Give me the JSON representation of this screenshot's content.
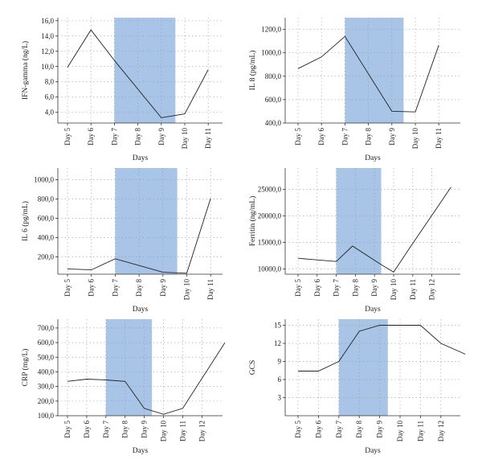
{
  "chart_data": [
    {
      "type": "line",
      "ylabel": "IFN-gamma (ng/L)",
      "xlabel": "Days",
      "categories": [
        "Day 5",
        "Day 6",
        "Day 7",
        "Day 8",
        "Day 9",
        "Day 10",
        "Day 11"
      ],
      "xlim": [
        0,
        7
      ],
      "ylim": [
        2.6,
        16.4
      ],
      "yticks": [
        4.0,
        6.0,
        8.0,
        10.0,
        12.0,
        14.0,
        16.0
      ],
      "ytick_labels": [
        "4,0",
        "6,0",
        "8,0",
        "10,0",
        "12,0",
        "14,0",
        "16,0"
      ],
      "shaded_x": [
        2,
        4.6
      ],
      "shade_color": "#a8c4e6",
      "series": [
        {
          "x": [
            0,
            1,
            2,
            4,
            5,
            6
          ],
          "y": [
            9.9,
            14.8,
            10.8,
            3.3,
            3.8,
            9.6
          ]
        }
      ]
    },
    {
      "type": "line",
      "ylabel": "IL 8 (pg/mL)",
      "xlabel": "Days",
      "categories": [
        "Day 5",
        "Day 6",
        "Day 7",
        "Day 8",
        "Day 9",
        "Day 10",
        "Day 11"
      ],
      "xlim": [
        0,
        7
      ],
      "ylim": [
        400,
        1300
      ],
      "yticks": [
        400.0,
        600.0,
        800.0,
        1000.0,
        1200.0
      ],
      "ytick_labels": [
        "400,0",
        "600,0",
        "800,0",
        "1000,0",
        "1200,0"
      ],
      "shaded_x": [
        2,
        4.5
      ],
      "shade_color": "#a8c4e6",
      "series": [
        {
          "x": [
            0,
            1,
            2,
            4,
            5,
            6
          ],
          "y": [
            865,
            965,
            1140,
            500,
            495,
            1065
          ]
        }
      ]
    },
    {
      "type": "line",
      "ylabel": "IL 6 (pg/mL)",
      "xlabel": "Days",
      "categories": [
        "Day 5",
        "Day 6",
        "Day 7",
        "Day 8",
        "Day 9",
        "Day 10",
        "Day 11"
      ],
      "xlim": [
        0,
        7
      ],
      "ylim": [
        20,
        1120
      ],
      "yticks": [
        200.0,
        400.0,
        600.0,
        800.0,
        1000.0
      ],
      "ytick_labels": [
        "200,0",
        "400,0",
        "600,0",
        "800,0",
        "1000,0"
      ],
      "shaded_x": [
        2,
        4.6
      ],
      "shade_color": "#a8c4e6",
      "series": [
        {
          "x": [
            0,
            1,
            2,
            4,
            5,
            6
          ],
          "y": [
            75,
            65,
            180,
            40,
            30,
            805
          ]
        }
      ]
    },
    {
      "type": "line",
      "ylabel": "Ferritin (ng/mL)",
      "xlabel": "Days",
      "categories": [
        "Day 5",
        "Day 6",
        "Day 7",
        "Day 8",
        "Day 9",
        "Day 10",
        "Day 11",
        "Day 12"
      ],
      "xlim": [
        0,
        8
      ],
      "ylim": [
        9000,
        29000
      ],
      "yticks": [
        10000.0,
        15000.0,
        20000.0,
        25000.0
      ],
      "ytick_labels": [
        "10000,0",
        "15000,0",
        "20000,0",
        "25000,0"
      ],
      "shaded_x": [
        2,
        4.35
      ],
      "shade_color": "#a8c4e6",
      "series": [
        {
          "x": [
            0,
            2,
            2.85,
            4.35,
            5,
            5.85,
            8
          ],
          "y": [
            12000,
            11400,
            14300,
            10800,
            9400,
            14000,
            25400
          ]
        }
      ]
    },
    {
      "type": "line",
      "ylabel": "CRP (mg/L)",
      "xlabel": "Days",
      "categories": [
        "Day 5",
        "Day 6",
        "Day 7",
        "Day 8",
        "Day 9",
        "Day 10",
        "Day 11",
        "Day 12"
      ],
      "xlim": [
        0,
        8.2
      ],
      "ylim": [
        100,
        760
      ],
      "yticks": [
        100.0,
        200.0,
        300.0,
        400.0,
        500.0,
        600.0,
        700.0
      ],
      "ytick_labels": [
        "100,0",
        "200,0",
        "300,0",
        "400,0",
        "500,0",
        "600,0",
        "700,0"
      ],
      "shaded_x": [
        2,
        4.4
      ],
      "shade_color": "#a8c4e6",
      "series": [
        {
          "x": [
            0,
            1,
            2,
            3,
            4,
            5,
            6,
            8.2
          ],
          "y": [
            335,
            350,
            345,
            335,
            150,
            110,
            150,
            600
          ]
        }
      ]
    },
    {
      "type": "line",
      "ylabel": "GCS",
      "xlabel": "Days",
      "categories": [
        "Day 5",
        "Day 6",
        "Day 7",
        "Day 8",
        "Day 9",
        "Day 10",
        "Day 11",
        "Day 12"
      ],
      "xlim": [
        0,
        8.2
      ],
      "ylim": [
        0,
        16
      ],
      "yticks": [
        3,
        6,
        9,
        12,
        15
      ],
      "ytick_labels": [
        "3",
        "6",
        "9",
        "12",
        "15"
      ],
      "shaded_x": [
        2,
        4.4
      ],
      "shade_color": "#a8c4e6",
      "series": [
        {
          "x": [
            0,
            1,
            2,
            3,
            4,
            5,
            6,
            7,
            8.2
          ],
          "y": [
            7.4,
            7.4,
            9,
            14,
            15,
            15,
            15,
            12,
            10.2
          ]
        }
      ]
    }
  ]
}
